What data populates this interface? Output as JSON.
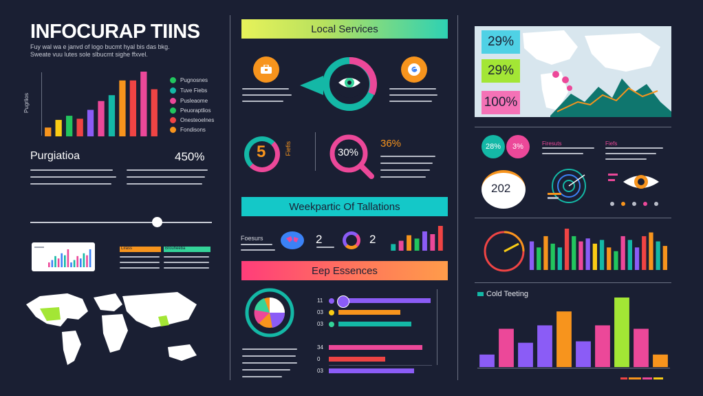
{
  "colors": {
    "background": "#1a1f33",
    "orange": "#f7941d",
    "pink": "#ec4899",
    "green": "#34d399",
    "teal": "#14b8a6",
    "purple": "#8b5cf6",
    "red": "#ef4444",
    "yellow": "#facc15",
    "lime": "#a3e635"
  },
  "left": {
    "title": "INFOCURAP TIINS",
    "subtitle_lines": [
      "Fuy wal wa e janvd of logo bucmt hyal bis das bkg.",
      "Sweate vuu lutes sole slbucmt sighe ffxvel."
    ],
    "chart_ylabel": "Pugrlios",
    "legend": [
      "Pugnosnes",
      "Tuve Fiebs",
      "Pusleaome",
      "Peuoraptlios",
      "Onesteoelnes",
      "Fondisons"
    ],
    "stat_label": "Purgiatioa",
    "stat_value": "450%",
    "panel_left_head": "Lirass",
    "panel_right_head": "Brouheeba"
  },
  "center": {
    "banner1": "Local Services",
    "ring_value": "5",
    "ring_side_text": "Fiefis",
    "magnifier_value": "30%",
    "side_stat": "36%",
    "banner2": "Weekpartic Of Tallations",
    "stat_a": "2",
    "stat_b": "2",
    "stat_label_left": "Foesurs",
    "banner3": "Eep Essences",
    "hbar_labels_top": [
      "11",
      "03",
      "03"
    ],
    "hbar_labels_bottom": [
      "34",
      "0",
      "03"
    ]
  },
  "right": {
    "map_stats": [
      "29%",
      "29%",
      "100%"
    ],
    "badge_a": "28%",
    "badge_b": "3%",
    "head_a": "Firesuts",
    "head_b": "Fiefs",
    "bubble_value": "202",
    "bar_chart_title": "Cold Teeting"
  },
  "chart_data": [
    {
      "type": "bar",
      "title": "",
      "ylabel": "Pugrlios",
      "values": [
        15,
        28,
        35,
        30,
        45,
        60,
        70,
        95,
        95,
        110,
        80
      ],
      "series_colors": [
        "#f7941d",
        "#facc15",
        "#22c55e",
        "#ef4444",
        "#8b5cf6",
        "#ec4899",
        "#14b8a6",
        "#f7941d",
        "#ef4444",
        "#ec4899",
        "#ef4444"
      ]
    },
    {
      "type": "bar",
      "title": "",
      "values": [
        38,
        30,
        45,
        35,
        30,
        55,
        45,
        38,
        42,
        35,
        40,
        30,
        25,
        45,
        40,
        30,
        45,
        50,
        38,
        32
      ],
      "series_colors": [
        "#8b5cf6",
        "#22c55e",
        "#f7941d",
        "#22c55e",
        "#14b8a6",
        "#ef4444",
        "#22c55e",
        "#ec4899",
        "#8b5cf6",
        "#facc15",
        "#14b8a6",
        "#f7941d",
        "#22c55e",
        "#ec4899",
        "#14b8a6",
        "#8b5cf6",
        "#ef4444",
        "#f7941d",
        "#14b8a6",
        "#f7941d"
      ]
    },
    {
      "type": "bar",
      "title": "Cold Teeting",
      "values": [
        18,
        55,
        35,
        60,
        80,
        37,
        60,
        100,
        55,
        18
      ],
      "series_colors": [
        "#8b5cf6",
        "#ec4899",
        "#8b5cf6",
        "#8b5cf6",
        "#f7941d",
        "#8b5cf6",
        "#ec4899",
        "#a3e635",
        "#ec4899",
        "#f7941d"
      ]
    },
    {
      "type": "bar",
      "values": [
        12,
        18,
        28,
        22,
        35,
        30,
        45
      ],
      "series_colors": [
        "#14b8a6",
        "#ec4899",
        "#f7941d",
        "#22c55e",
        "#8b5cf6",
        "#ec4899",
        "#ef4444"
      ]
    }
  ]
}
